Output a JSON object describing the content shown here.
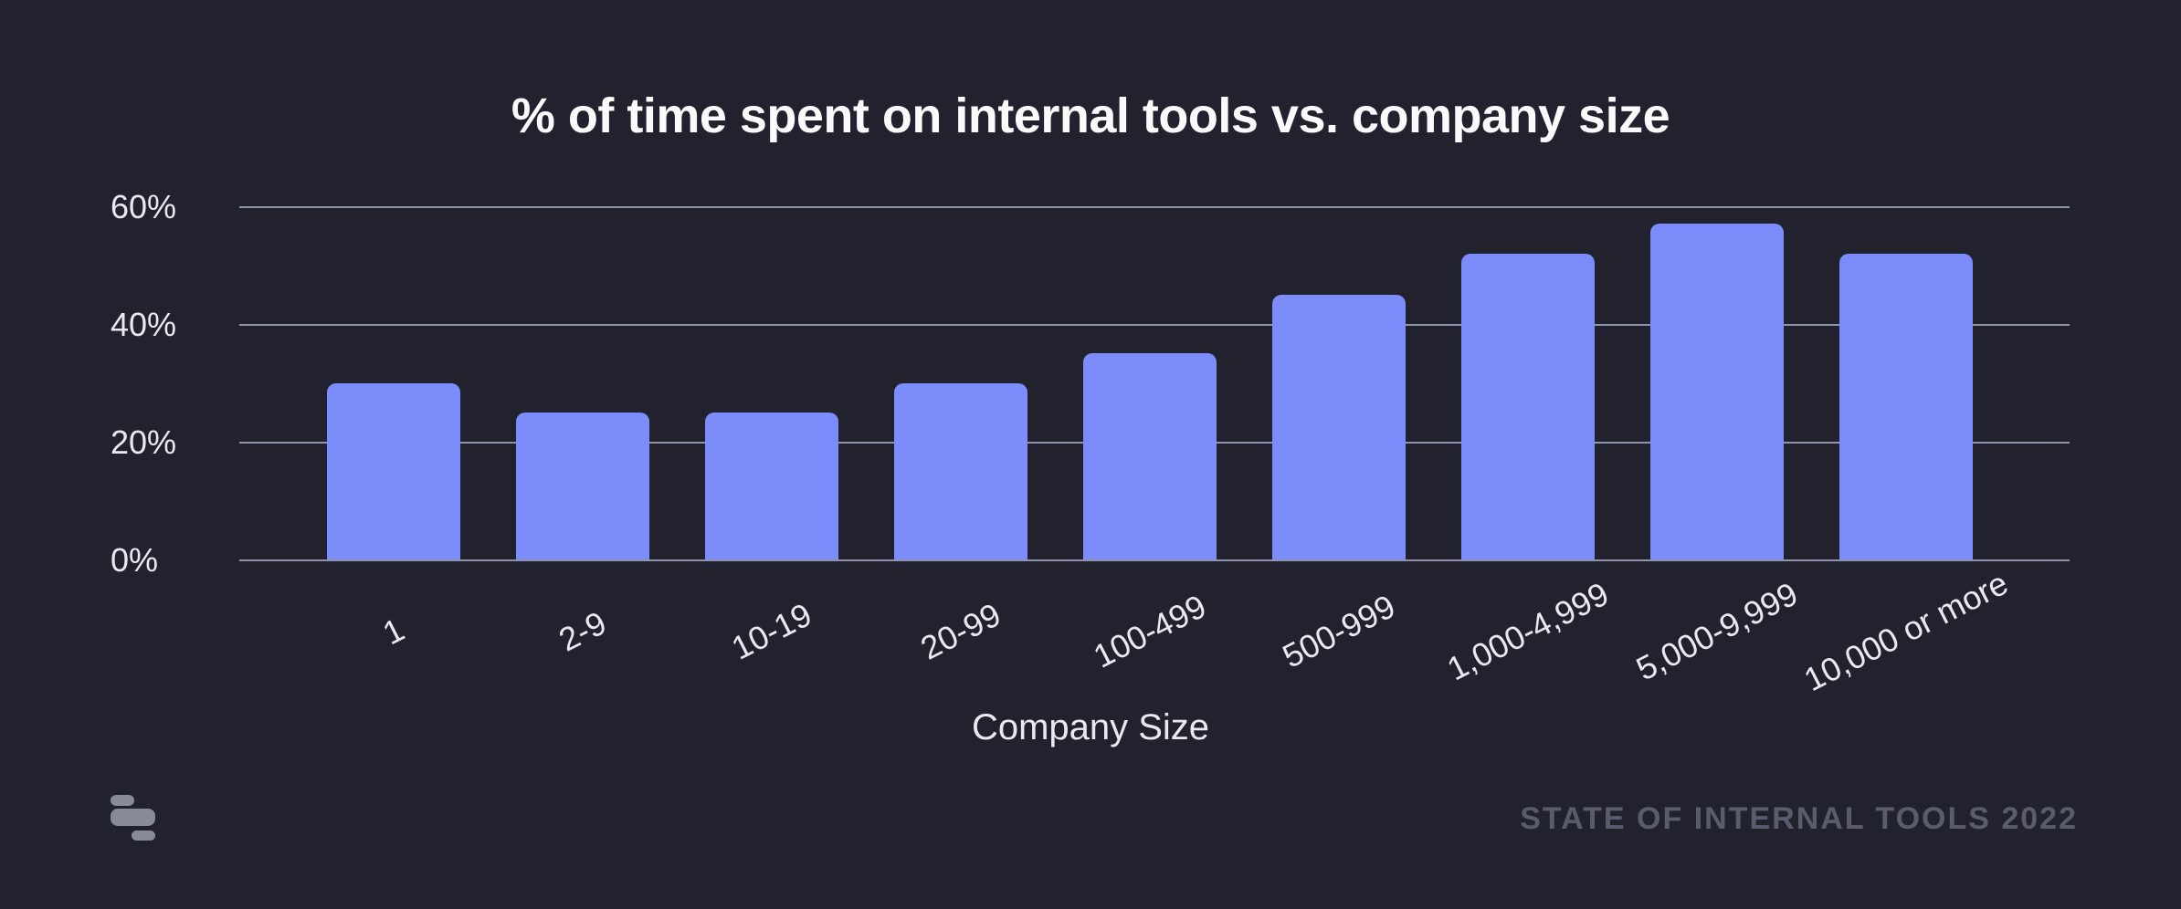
{
  "title": "% of time spent on internal tools vs. company size",
  "chart_data": {
    "type": "bar",
    "title": "% of time spent on internal tools vs. company size",
    "categories": [
      "1",
      "2-9",
      "10-19",
      "20-99",
      "100-499",
      "500-999",
      "1,000-4,999",
      "5,000-9,999",
      "10,000 or more"
    ],
    "values": [
      30,
      25,
      25,
      30,
      35,
      45,
      52,
      57,
      52
    ],
    "xlabel": "Company Size",
    "ylabel": "",
    "ylim": [
      0,
      60
    ],
    "yticks": [
      0,
      20,
      40,
      60
    ],
    "ytick_labels": [
      "0%",
      "20%",
      "40%",
      "60%"
    ],
    "grid": true,
    "legend": false,
    "bar_color": "#7c8cfb"
  },
  "footer": {
    "source_label": "STATE OF INTERNAL TOOLS 2022",
    "logo_name": "retool-logo"
  },
  "colors": {
    "background": "#22222e",
    "bar": "#7c8cfb",
    "gridline": "#8e93ae",
    "text_primary": "#fafafc",
    "text_axis": "#e9e9f1",
    "footer_text": "#585d6e",
    "logo": "#878b96"
  }
}
